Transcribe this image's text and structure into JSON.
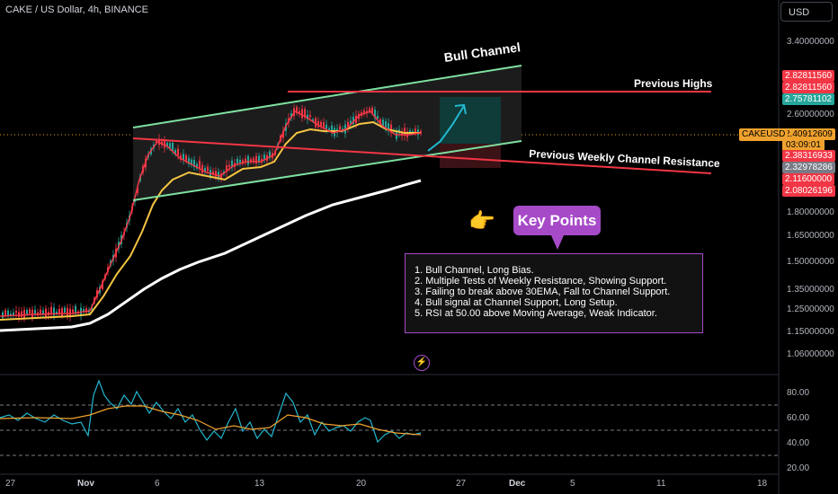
{
  "header": {
    "symbol_title": "CAKE / US Dollar, 4h, BINANCE",
    "currency_button": "USD"
  },
  "price_axis": {
    "ticks": [
      "3.40000000",
      "2.60000000",
      "1.80000000",
      "1.65000000",
      "1.50000000",
      "1.35000000",
      "1.25000000",
      "1.15000000",
      "1.06000000"
    ],
    "tags": [
      {
        "value": "2.82811560",
        "color": "#f23645"
      },
      {
        "value": "2.82811560",
        "color": "#f23645"
      },
      {
        "value": "2.75781102",
        "color": "#26a69a"
      },
      {
        "value": "2.40912609",
        "color": "#f0a22e"
      },
      {
        "value": "2.38316933",
        "color": "#f23645"
      },
      {
        "value": "2.32978286",
        "color": "#787b86"
      },
      {
        "value": "2.11600000",
        "color": "#f23645"
      },
      {
        "value": "2.08026196",
        "color": "#f23645"
      }
    ],
    "ticker": "CAKEUSD",
    "countdown": "03:09:01"
  },
  "rsi_axis": {
    "ticks": [
      "80.00",
      "60.00",
      "40.00",
      "20.00"
    ]
  },
  "time_axis": {
    "ticks": [
      "27",
      "Nov",
      "6",
      "13",
      "20",
      "27",
      "Dec",
      "5",
      "11",
      "18"
    ]
  },
  "annotations": {
    "bull_channel": "Bull Channel",
    "previous_highs": "Previous Highs",
    "previous_weekly_resistance": "Previous Weekly Channel Resistance",
    "key_points_title": "Key Points",
    "notes": [
      "1. Bull Channel, Long Bias.",
      "2. Multiple Tests of Weekly Resistance, Showing Support.",
      "3. Failing to break above 30EMA, Fall to Channel Support.",
      "4. Bull signal at Channel Support, Long Setup.",
      "5. RSI at 50.00 above Moving Average, Weak Indicator."
    ]
  },
  "icons": {
    "hand": "pointing-hand-icon",
    "bolt": "lightning-icon"
  },
  "colors": {
    "up": "#26a69a",
    "down": "#f23645",
    "ema_fast": "#f23645",
    "ema_mid": "#f5c542",
    "ma_slow": "#ffffff",
    "channel": "#7ee0a0",
    "resistance": "#f23645",
    "rsi": "#22b8d0",
    "rsi_ma": "#f0a22e",
    "accent": "#a64ac8"
  }
}
